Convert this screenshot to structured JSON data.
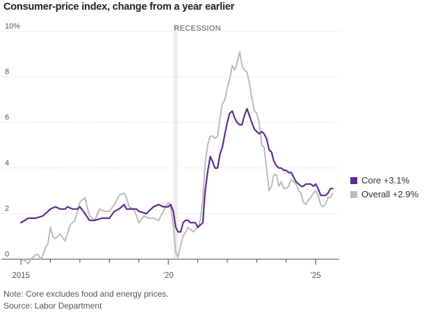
{
  "title": "Consumer-price index, change from a year earlier",
  "note": "Note: Core excludes food and energy prices.",
  "source": "Source: Labor Department",
  "colors": {
    "core": "#5b2d8e",
    "overall": "#bbbbbb",
    "recession": "#eeeeee",
    "grid": "#dddddd",
    "axis": "#444444"
  },
  "chart_data": {
    "type": "line",
    "ylim": [
      0,
      10
    ],
    "yticks": [
      0,
      2,
      4,
      6,
      8,
      10
    ],
    "ytick_labels": [
      "0",
      "2",
      "4",
      "6",
      "8",
      "10%"
    ],
    "xlim": [
      2014.95,
      2025.75
    ],
    "xticks": [
      2015,
      2020,
      2025
    ],
    "xtick_labels": [
      "2015",
      "'20",
      "'25"
    ],
    "recession": {
      "label": "RECESSION",
      "start": 2020.17,
      "end": 2020.33
    },
    "series": [
      {
        "name": "Core +3.1%",
        "x": [
          2015.0,
          2015.25,
          2015.5,
          2015.75,
          2016.0,
          2016.17,
          2016.33,
          2016.5,
          2016.58,
          2016.75,
          2016.92,
          2017.0,
          2017.17,
          2017.33,
          2017.5,
          2017.75,
          2018.0,
          2018.17,
          2018.33,
          2018.5,
          2018.58,
          2018.75,
          2018.92,
          2019.0,
          2019.25,
          2019.5,
          2019.67,
          2019.83,
          2020.0,
          2020.08,
          2020.17,
          2020.25,
          2020.33,
          2020.42,
          2020.5,
          2020.58,
          2020.67,
          2020.75,
          2020.83,
          2020.92,
          2021.0,
          2021.17,
          2021.25,
          2021.33,
          2021.42,
          2021.5,
          2021.58,
          2021.67,
          2021.75,
          2021.83,
          2021.92,
          2022.0,
          2022.08,
          2022.17,
          2022.25,
          2022.33,
          2022.42,
          2022.5,
          2022.58,
          2022.67,
          2022.75,
          2022.83,
          2022.92,
          2023.0,
          2023.08,
          2023.17,
          2023.25,
          2023.33,
          2023.42,
          2023.5,
          2023.58,
          2023.67,
          2023.75,
          2023.83,
          2023.92,
          2024.0,
          2024.08,
          2024.17,
          2024.25,
          2024.33,
          2024.42,
          2024.5,
          2024.58,
          2024.67,
          2024.75,
          2024.83,
          2024.92,
          2025.0,
          2025.08,
          2025.17,
          2025.25,
          2025.33,
          2025.42,
          2025.5,
          2025.58
        ],
        "values": [
          1.6,
          1.8,
          1.8,
          1.9,
          2.2,
          2.3,
          2.2,
          2.2,
          2.3,
          2.2,
          2.2,
          2.3,
          2.0,
          1.7,
          1.7,
          1.8,
          1.8,
          2.1,
          2.2,
          2.4,
          2.2,
          2.2,
          2.2,
          2.1,
          2.0,
          2.3,
          2.4,
          2.3,
          2.3,
          2.4,
          2.1,
          1.4,
          1.2,
          1.2,
          1.6,
          1.7,
          1.7,
          1.6,
          1.6,
          1.6,
          1.4,
          1.6,
          3.0,
          3.8,
          4.5,
          4.3,
          4.0,
          4.0,
          4.6,
          4.9,
          5.5,
          6.0,
          6.4,
          6.5,
          6.2,
          6.0,
          5.9,
          5.9,
          6.3,
          6.6,
          6.3,
          6.0,
          5.7,
          5.6,
          5.5,
          5.6,
          5.5,
          5.3,
          4.8,
          4.7,
          4.3,
          4.1,
          4.0,
          4.0,
          3.9,
          3.9,
          3.8,
          3.8,
          3.6,
          3.4,
          3.3,
          3.2,
          3.2,
          3.3,
          3.3,
          3.3,
          3.2,
          3.3,
          3.1,
          2.8,
          2.8,
          2.8,
          2.9,
          3.1,
          3.1
        ]
      },
      {
        "name": "Overall +2.9%",
        "x": [
          2015.0,
          2015.08,
          2015.17,
          2015.25,
          2015.33,
          2015.42,
          2015.5,
          2015.58,
          2015.67,
          2015.75,
          2015.83,
          2015.92,
          2016.0,
          2016.08,
          2016.17,
          2016.33,
          2016.5,
          2016.67,
          2016.83,
          2017.0,
          2017.17,
          2017.33,
          2017.5,
          2017.67,
          2017.83,
          2018.0,
          2018.17,
          2018.33,
          2018.5,
          2018.58,
          2018.67,
          2018.83,
          2018.92,
          2019.0,
          2019.17,
          2019.33,
          2019.5,
          2019.67,
          2019.83,
          2020.0,
          2020.08,
          2020.17,
          2020.25,
          2020.33,
          2020.42,
          2020.5,
          2020.67,
          2020.83,
          2021.0,
          2021.08,
          2021.17,
          2021.25,
          2021.33,
          2021.42,
          2021.5,
          2021.58,
          2021.67,
          2021.75,
          2021.83,
          2021.92,
          2022.0,
          2022.08,
          2022.17,
          2022.25,
          2022.33,
          2022.42,
          2022.5,
          2022.58,
          2022.67,
          2022.75,
          2022.83,
          2022.92,
          2023.0,
          2023.08,
          2023.17,
          2023.25,
          2023.33,
          2023.42,
          2023.5,
          2023.58,
          2023.67,
          2023.75,
          2023.83,
          2023.92,
          2024.0,
          2024.08,
          2024.17,
          2024.25,
          2024.33,
          2024.42,
          2024.5,
          2024.58,
          2024.67,
          2024.75,
          2024.83,
          2024.92,
          2025.0,
          2025.08,
          2025.17,
          2025.25,
          2025.33,
          2025.42,
          2025.5,
          2025.58
        ],
        "values": [
          -0.1,
          0.0,
          -0.1,
          -0.2,
          0.0,
          0.1,
          0.2,
          0.2,
          0.0,
          0.2,
          0.5,
          0.7,
          1.4,
          1.0,
          0.9,
          1.1,
          0.8,
          1.5,
          1.7,
          2.5,
          2.7,
          1.9,
          1.7,
          2.2,
          2.1,
          2.1,
          2.4,
          2.8,
          2.9,
          2.7,
          2.3,
          2.2,
          1.9,
          1.6,
          1.9,
          1.8,
          1.8,
          1.7,
          2.1,
          2.5,
          2.3,
          1.5,
          0.3,
          0.1,
          0.6,
          1.0,
          1.4,
          1.2,
          1.4,
          1.7,
          2.6,
          4.2,
          5.0,
          5.4,
          5.4,
          5.3,
          5.4,
          6.2,
          6.8,
          7.0,
          7.5,
          7.9,
          8.5,
          8.3,
          8.6,
          9.1,
          8.5,
          8.3,
          8.2,
          7.7,
          7.1,
          6.5,
          6.4,
          6.0,
          5.0,
          4.9,
          4.0,
          3.0,
          3.2,
          3.7,
          3.7,
          3.2,
          3.4,
          3.1,
          3.1,
          3.2,
          3.5,
          3.4,
          3.3,
          3.0,
          2.9,
          2.5,
          2.4,
          2.6,
          2.7,
          2.9,
          3.0,
          2.8,
          2.4,
          2.3,
          2.4,
          2.7,
          2.7,
          2.9
        ]
      }
    ]
  }
}
